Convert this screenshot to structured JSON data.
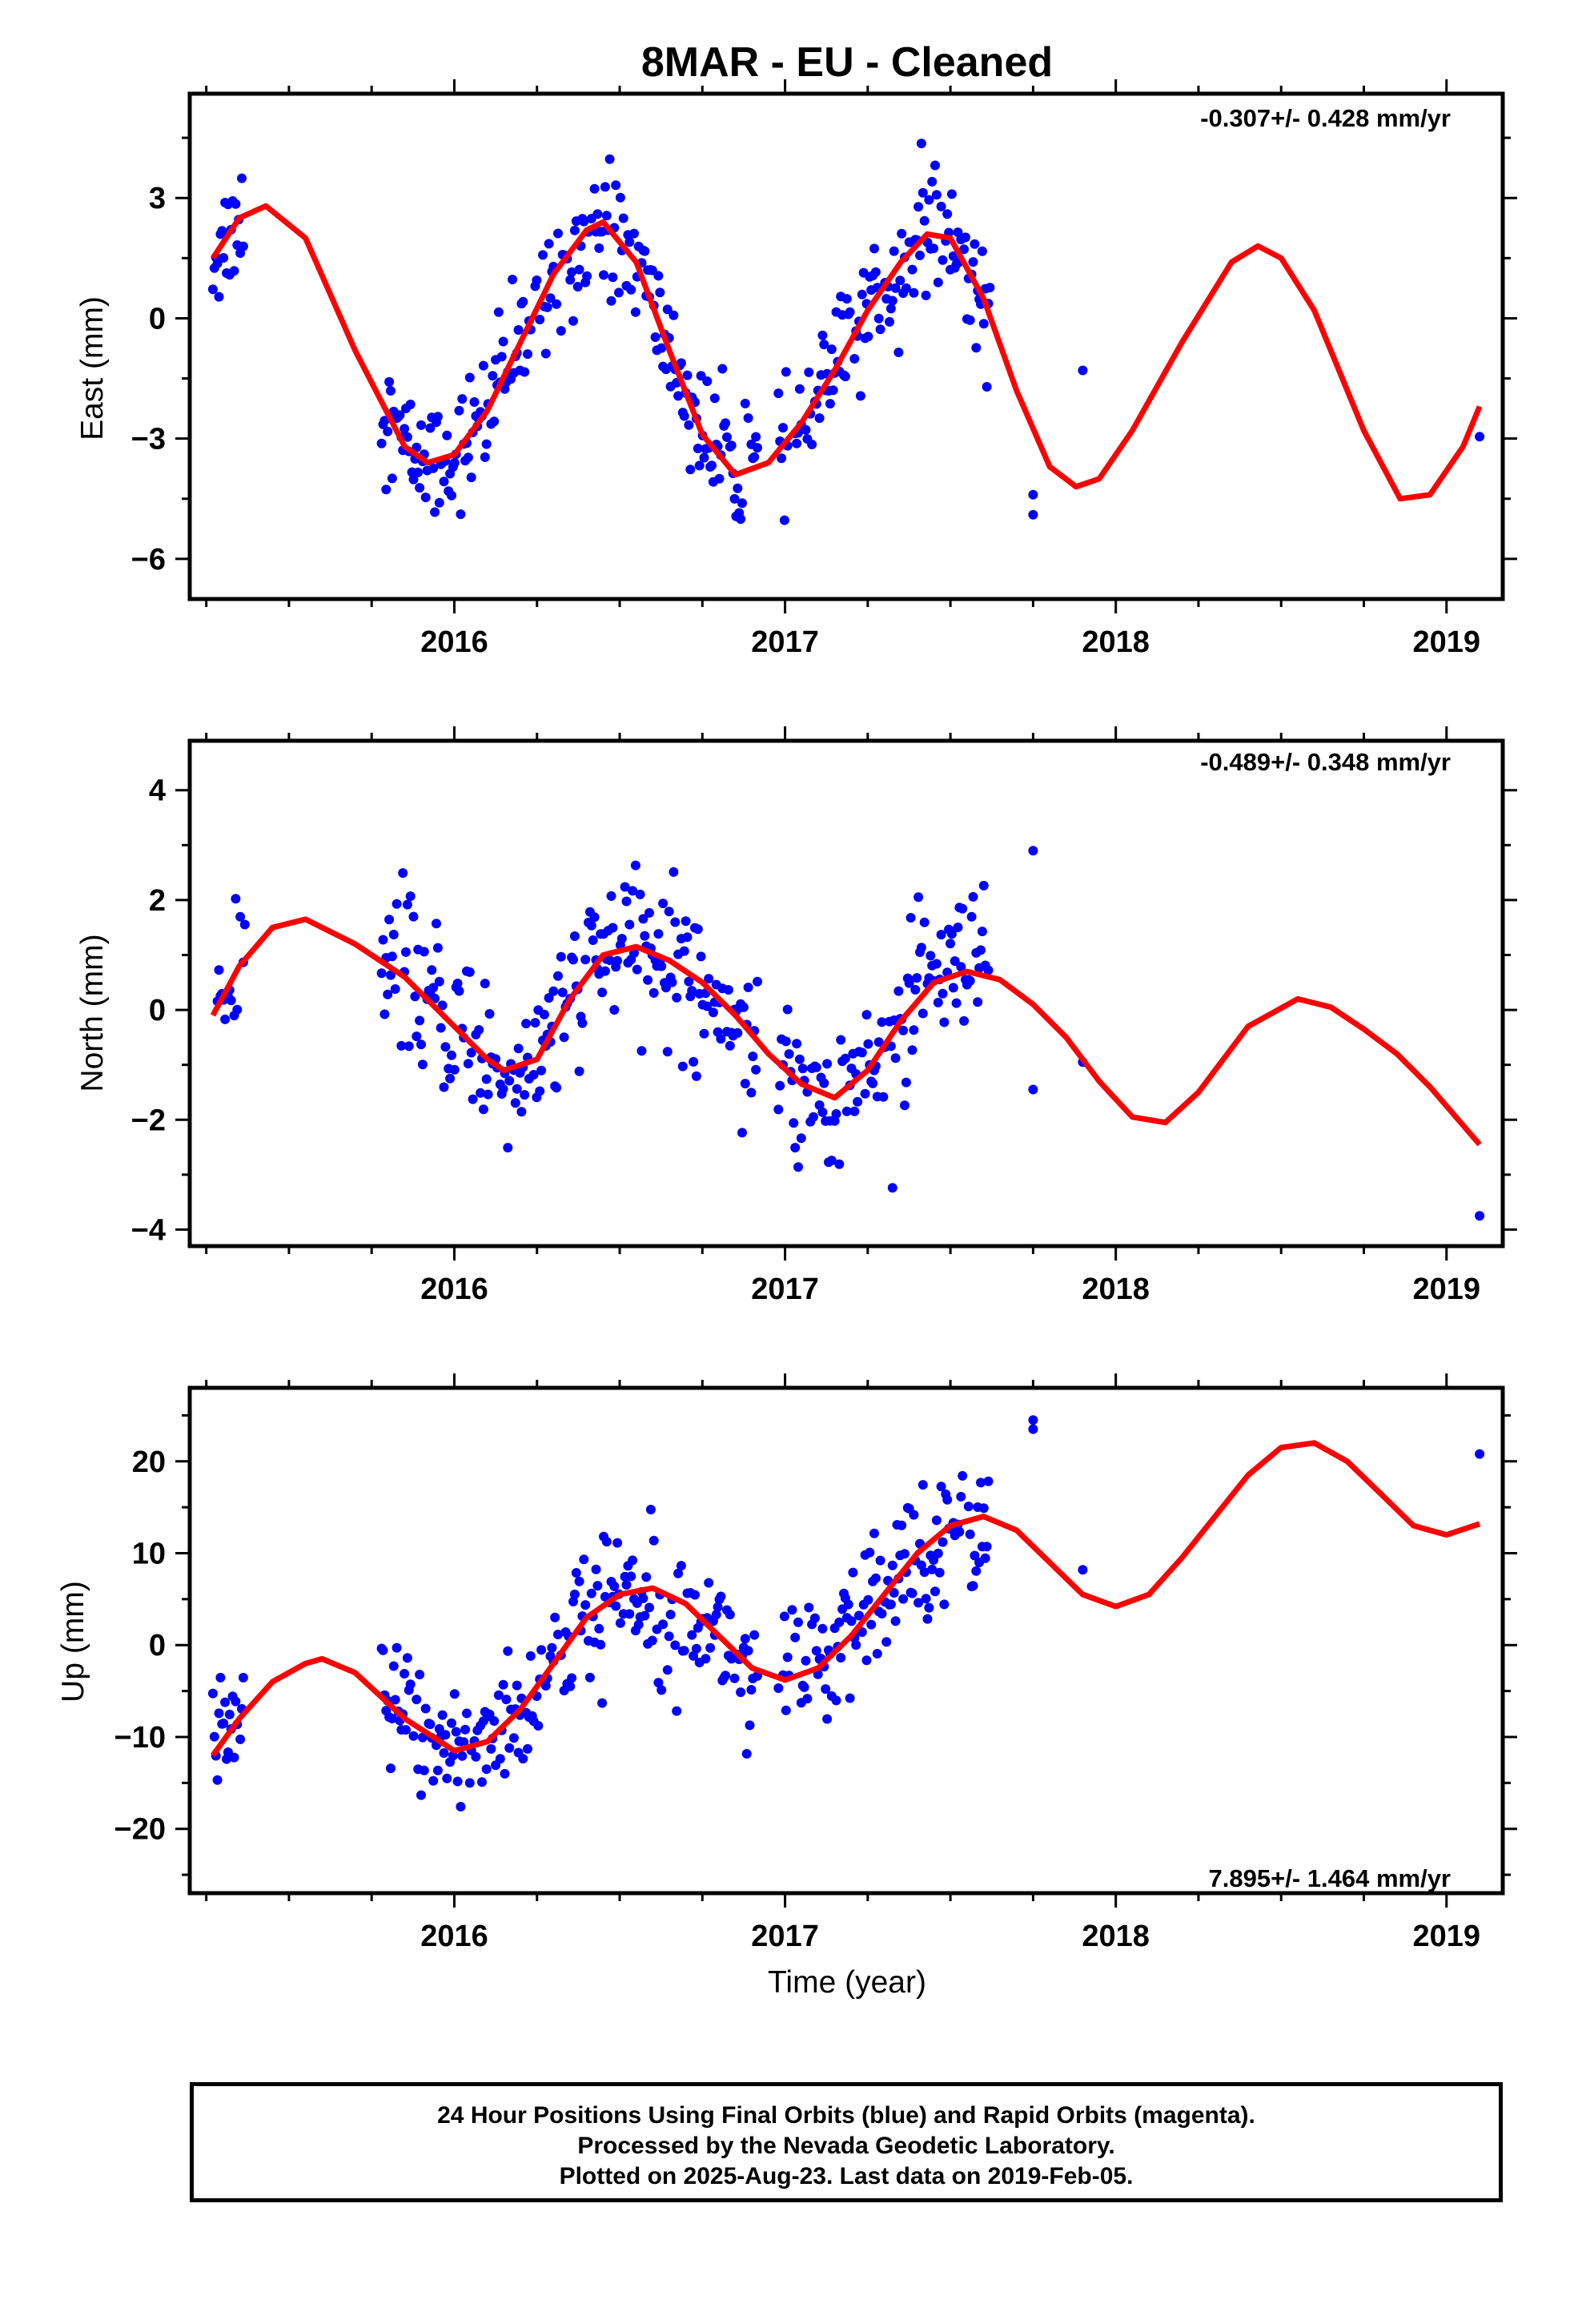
{
  "title": "8MAR  - EU - Cleaned",
  "x_axis_label": "Time (year)",
  "footer": {
    "line1": "24 Hour Positions Using Final Orbits (blue) and Rapid Orbits (magenta).",
    "line2": "Processed by the Nevada Geodetic Laboratory.",
    "line3": "Plotted on 2025-Aug-23. Last data on 2019-Feb-05."
  },
  "colors": {
    "points": "#0000ff",
    "model": "#ff0000",
    "axes": "#000000"
  },
  "chart_data": [
    {
      "type": "scatter",
      "ylabel": "East (mm)",
      "rate_label": "-0.307+/- 0.428 mm/yr",
      "xlim": [
        2015.2,
        2019.17
      ],
      "ylim": [
        -7.0,
        5.6
      ],
      "xticks": [
        2016,
        2017,
        2018,
        2019
      ],
      "yticks": [
        -6,
        -3,
        0,
        3
      ],
      "model_curve": {
        "x": [
          2015.27,
          2015.35,
          2015.43,
          2015.55,
          2015.7,
          2015.85,
          2015.92,
          2016.0,
          2016.1,
          2016.2,
          2016.3,
          2016.4,
          2016.45,
          2016.55,
          2016.65,
          2016.75,
          2016.85,
          2016.95,
          2017.05,
          2017.15,
          2017.25,
          2017.35,
          2017.43,
          2017.5,
          2017.6,
          2017.7,
          2017.8,
          2017.88,
          2017.95,
          2018.05,
          2018.2,
          2018.35,
          2018.43,
          2018.5,
          2018.6,
          2018.75,
          2018.86,
          2018.95,
          2019.05,
          2019.1
        ],
        "y": [
          1.5,
          2.5,
          2.8,
          2.0,
          -0.8,
          -3.2,
          -3.6,
          -3.4,
          -2.3,
          -0.6,
          1.1,
          2.2,
          2.4,
          1.4,
          -0.8,
          -2.9,
          -3.9,
          -3.6,
          -2.6,
          -1.3,
          0.2,
          1.4,
          2.1,
          2.0,
          0.5,
          -1.8,
          -3.7,
          -4.2,
          -4.0,
          -2.8,
          -0.6,
          1.4,
          1.8,
          1.5,
          0.2,
          -2.8,
          -4.5,
          -4.4,
          -3.2,
          -2.2
        ]
      }
    },
    {
      "type": "scatter",
      "ylabel": "North (mm)",
      "rate_label": "-0.489+/- 0.348 mm/yr",
      "xlim": [
        2015.2,
        2019.17
      ],
      "ylim": [
        -4.3,
        4.9
      ],
      "xticks": [
        2016,
        2017,
        2018,
        2019
      ],
      "yticks": [
        -4,
        -2,
        0,
        2,
        4
      ],
      "model_curve": {
        "x": [
          2015.27,
          2015.35,
          2015.45,
          2015.55,
          2015.7,
          2015.85,
          2016.0,
          2016.1,
          2016.15,
          2016.25,
          2016.35,
          2016.45,
          2016.55,
          2016.65,
          2016.75,
          2016.85,
          2016.95,
          2017.05,
          2017.15,
          2017.25,
          2017.35,
          2017.45,
          2017.55,
          2017.65,
          2017.75,
          2017.85,
          2017.95,
          2018.05,
          2018.15,
          2018.25,
          2018.4,
          2018.55,
          2018.65,
          2018.75,
          2018.85,
          2018.95,
          2019.05,
          2019.1
        ],
        "y": [
          -0.1,
          0.8,
          1.5,
          1.65,
          1.2,
          0.6,
          -0.3,
          -0.9,
          -1.1,
          -0.9,
          0.2,
          1.0,
          1.15,
          0.9,
          0.5,
          -0.1,
          -0.8,
          -1.35,
          -1.6,
          -1.1,
          -0.2,
          0.5,
          0.7,
          0.55,
          0.1,
          -0.5,
          -1.3,
          -1.95,
          -2.05,
          -1.5,
          -0.3,
          0.2,
          0.05,
          -0.35,
          -0.8,
          -1.4,
          -2.1,
          -2.45
        ]
      }
    },
    {
      "type": "scatter",
      "ylabel": "Up (mm)",
      "rate_label": "7.895+/- 1.464 mm/yr",
      "xlim": [
        2015.2,
        2019.17
      ],
      "ylim": [
        -27,
        28
      ],
      "xticks": [
        2016,
        2017,
        2018,
        2019
      ],
      "yticks": [
        -20,
        -10,
        0,
        10,
        20
      ],
      "model_curve": {
        "x": [
          2015.27,
          2015.35,
          2015.45,
          2015.55,
          2015.6,
          2015.7,
          2015.85,
          2016.0,
          2016.1,
          2016.2,
          2016.3,
          2016.4,
          2016.5,
          2016.6,
          2016.7,
          2016.8,
          2016.9,
          2017.0,
          2017.1,
          2017.2,
          2017.3,
          2017.4,
          2017.5,
          2017.6,
          2017.7,
          2017.8,
          2017.9,
          2018.0,
          2018.1,
          2018.2,
          2018.3,
          2018.4,
          2018.5,
          2018.6,
          2018.7,
          2018.8,
          2018.9,
          2019.0,
          2019.1
        ],
        "y": [
          -12,
          -8,
          -4,
          -2,
          -1.5,
          -3,
          -8,
          -11.5,
          -10.5,
          -7,
          -2,
          3,
          5.5,
          6.2,
          4.5,
          1,
          -2.5,
          -3.8,
          -2.5,
          1,
          5.5,
          10,
          13,
          14,
          12.5,
          9,
          5.5,
          4.2,
          5.5,
          9.5,
          14,
          18.5,
          21.5,
          22,
          20,
          16.5,
          13,
          12,
          13.2
        ]
      }
    }
  ]
}
